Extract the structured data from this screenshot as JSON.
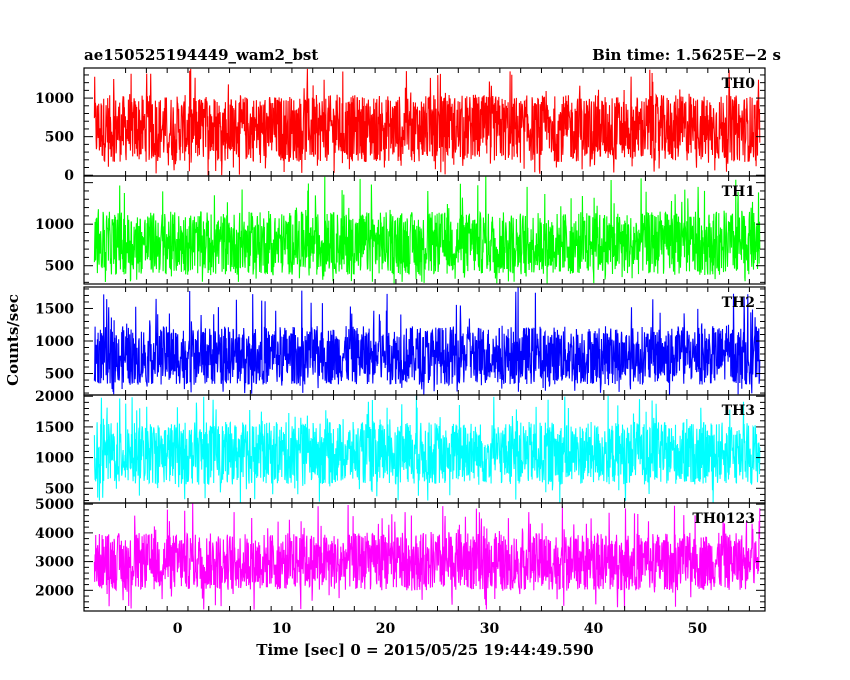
{
  "header": {
    "left_title": "ae150525194449_wam2_bst",
    "right_title": "Bin time: 1.5625E−2 s"
  },
  "chart_data": {
    "type": "line",
    "xlabel": "Time [sec] 0 = 2015/05/25 19:44:49.590",
    "ylabel": "Counts/sec",
    "xlim": [
      -9,
      56.5
    ],
    "xticks": [
      0,
      10,
      20,
      30,
      40,
      50
    ],
    "data_x_range": [
      -8,
      56
    ],
    "panels": [
      {
        "name": "TH0",
        "color": "#ff0000",
        "ylim": [
          -10,
          1390
        ],
        "yticks": [
          0,
          500,
          1000
        ],
        "baseline": 600,
        "typical_range": [
          170,
          1040
        ],
        "min_dips": 0,
        "max_peak": 1390
      },
      {
        "name": "TH1",
        "color": "#00ff00",
        "ylim": [
          280,
          1580
        ],
        "yticks": [
          500,
          1000
        ],
        "baseline": 780,
        "typical_range": [
          390,
          1150
        ],
        "min_dips": 280,
        "max_peak": 1580
      },
      {
        "name": "TH2",
        "color": "#0000ff",
        "ylim": [
          170,
          1830
        ],
        "yticks": [
          500,
          1000,
          1500
        ],
        "baseline": 780,
        "typical_range": [
          330,
          1230
        ],
        "min_dips": 170,
        "max_peak": 1830
      },
      {
        "name": "TH3",
        "color": "#00ffff",
        "ylim": [
          260,
          2020
        ],
        "yticks": [
          500,
          1000,
          1500,
          2000
        ],
        "baseline": 1050,
        "typical_range": [
          560,
          1580
        ],
        "min_dips": 260,
        "max_peak": 2020
      },
      {
        "name": "TH0123",
        "color": "#ff00ff",
        "ylim": [
          1280,
          5040
        ],
        "yticks": [
          2000,
          3000,
          4000,
          5000
        ],
        "baseline": 2950,
        "typical_range": [
          2000,
          4000
        ],
        "min_dips": 1280,
        "max_peak": 5040
      }
    ]
  }
}
